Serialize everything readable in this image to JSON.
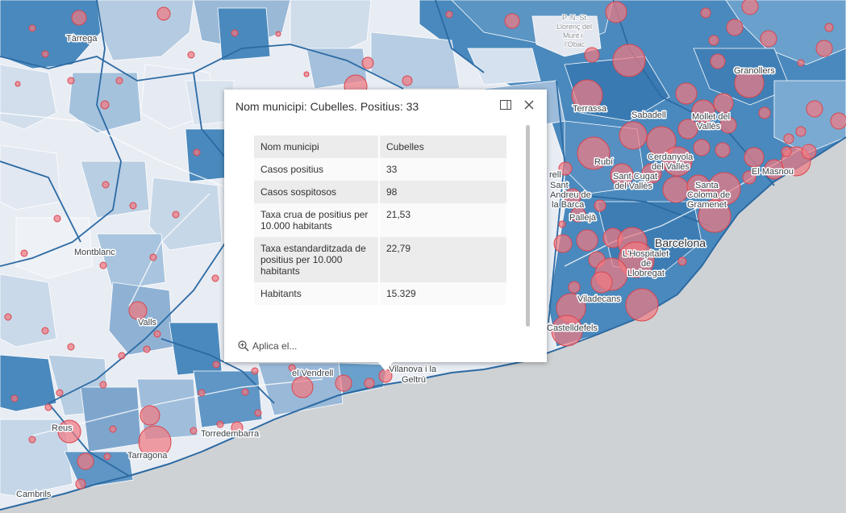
{
  "popup": {
    "title": "Nom municipi: Cubelles. Positius: 33",
    "rows": [
      {
        "label": "Nom municipi",
        "value": "Cubelles"
      },
      {
        "label": "Casos positius",
        "value": "33"
      },
      {
        "label": "Casos sospitosos",
        "value": "98"
      },
      {
        "label": "Taxa crua de positius per 10.000 habitants",
        "value": "21,53"
      },
      {
        "label": "Taxa estandarditzada de positius per 10.000 habitants",
        "value": "22,79"
      },
      {
        "label": "Habitants",
        "value": "15.329"
      }
    ],
    "action_label": "Aplica el..."
  },
  "map": {
    "places": [
      "Tàrrega",
      "Montblanc",
      "Valls",
      "Reus",
      "Tarragona",
      "Cambrils",
      "Torredembarra",
      "el Vendrell",
      "Vilanova i la Geltrú",
      "Castelldefels",
      "Viladecans",
      "L'Hospitalet de Llobregat",
      "Barcelona",
      "Santa Coloma de Gramenet",
      "Sant Cugat del Vallès",
      "Cerdanyola del Vallès",
      "Sabadell",
      "Terrassa",
      "Rubí",
      "Mollet del Vallès",
      "Granollers",
      "El Masnou",
      "Sant Andreu de la Barca",
      "Pallejà",
      "P. N. St. Llorenç del Munt i l'Obac"
    ],
    "colors": {
      "sea": "#cfd2d4",
      "land_light": "#eef0f5",
      "choropleth_dark": "#4a89bd",
      "bubble": "#f07a82"
    }
  }
}
